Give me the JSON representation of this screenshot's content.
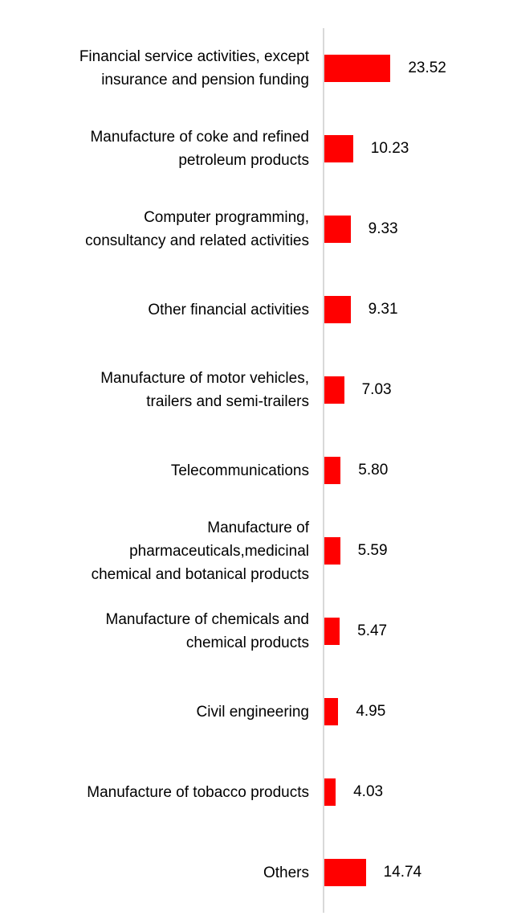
{
  "chart_data": {
    "type": "bar",
    "orientation": "horizontal",
    "categories": [
      [
        "Financial service activities, except",
        "insurance and pension funding"
      ],
      [
        "Manufacture of coke and refined",
        "petroleum products"
      ],
      [
        "Computer programming,",
        "consultancy and related activities"
      ],
      [
        "Other financial activities"
      ],
      [
        "Manufacture of motor vehicles,",
        "trailers and semi-trailers"
      ],
      [
        "Telecommunications"
      ],
      [
        "Manufacture of",
        "pharmaceuticals,medicinal",
        "chemical and botanical products"
      ],
      [
        "Manufacture of chemicals and",
        "chemical products"
      ],
      [
        "Civil engineering"
      ],
      [
        "Manufacture of tobacco products"
      ],
      [
        "Others"
      ]
    ],
    "values": [
      23.52,
      10.23,
      9.33,
      9.31,
      7.03,
      5.8,
      5.59,
      5.47,
      4.95,
      4.03,
      14.74
    ],
    "value_labels": [
      "23.52",
      "10.23",
      "9.33",
      "9.31",
      "7.03",
      "5.80",
      "5.59",
      "5.47",
      "4.95",
      "4.03",
      "14.74"
    ],
    "bar_color": "#ff0000",
    "axis_color": "#d9d9d9",
    "grid": false,
    "legend": "none"
  }
}
